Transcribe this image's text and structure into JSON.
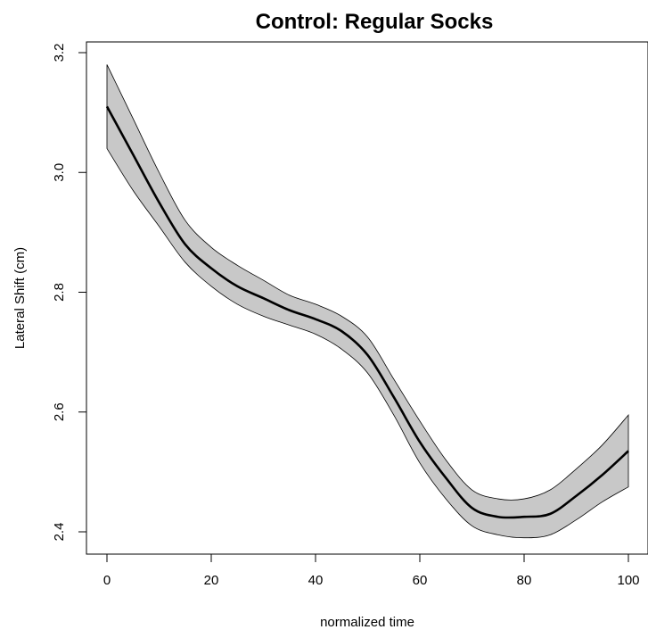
{
  "chart_data": {
    "type": "line",
    "title": "Control: Regular Socks",
    "xlabel": "normalized time",
    "ylabel": "Lateral Shift (cm)",
    "xlim": [
      0,
      100
    ],
    "ylim": [
      2.4,
      3.2
    ],
    "x_ticks": [
      "0",
      "20",
      "40",
      "60",
      "80",
      "100"
    ],
    "y_ticks": [
      "2.4",
      "2.6",
      "2.8",
      "3.0",
      "3.2"
    ],
    "grid": false,
    "band_fill_color": "#c8c8c8",
    "line_color": "#000000",
    "x": [
      0,
      5,
      10,
      15,
      20,
      25,
      30,
      35,
      40,
      45,
      50,
      55,
      60,
      65,
      70,
      75,
      80,
      85,
      90,
      95,
      100
    ],
    "fit": [
      3.11,
      3.03,
      2.95,
      2.88,
      2.84,
      2.81,
      2.79,
      2.77,
      2.755,
      2.735,
      2.695,
      2.625,
      2.55,
      2.49,
      2.44,
      2.425,
      2.425,
      2.43,
      2.46,
      2.495,
      2.535
    ],
    "lower": [
      3.04,
      2.97,
      2.91,
      2.85,
      2.81,
      2.78,
      2.76,
      2.745,
      2.73,
      2.705,
      2.665,
      2.595,
      2.515,
      2.455,
      2.41,
      2.395,
      2.39,
      2.395,
      2.42,
      2.45,
      2.475
    ],
    "upper": [
      3.18,
      3.09,
      3.0,
      2.92,
      2.875,
      2.845,
      2.82,
      2.795,
      2.78,
      2.76,
      2.725,
      2.655,
      2.585,
      2.52,
      2.47,
      2.455,
      2.455,
      2.47,
      2.505,
      2.545,
      2.595
    ]
  }
}
